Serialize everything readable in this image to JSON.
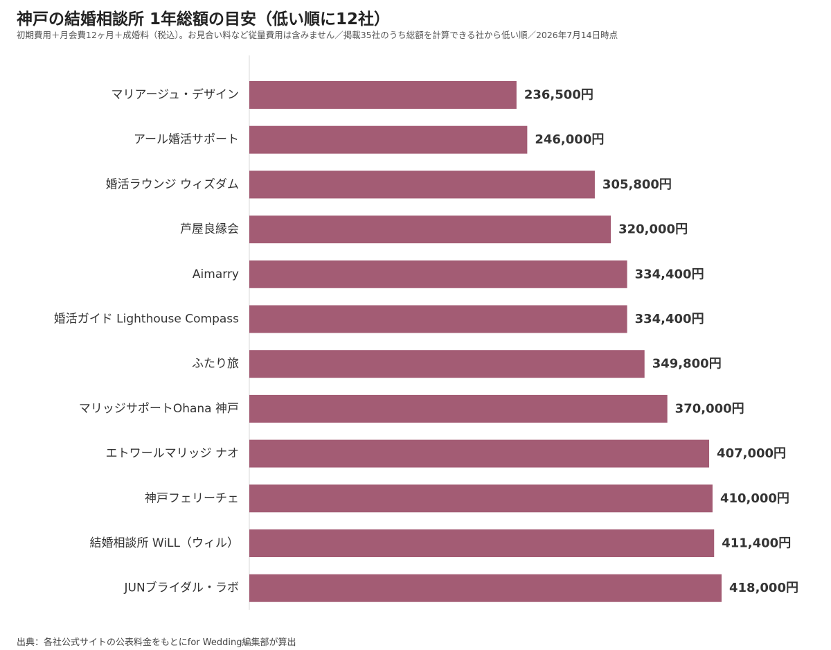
{
  "header": {
    "title": "神戸の結婚相談所 1年総額の目安（低い順に12社）",
    "subtitle": "初期費用＋月会費12ヶ月＋成婚料（税込）。お見合い料など従量費用は含みません／掲載35社のうち総額を計算できる社から低い順／2026年7月14日時点"
  },
  "footer": {
    "source": "出典：各社公式サイトの公表料金をもとにfor Wedding編集部が算出"
  },
  "chart_data": {
    "type": "bar",
    "orientation": "horizontal",
    "title": "神戸の結婚相談所 1年総額の目安（低い順に12社）",
    "subtitle": "初期費用＋月会費12ヶ月＋成婚料（税込）。お見合い料など従量費用は含みません／掲載35社のうち総額を計算できる社から低い順／2026年7月14日時点",
    "categories": [
      "マリアージュ・デザイン",
      "アール婚活サポート",
      "婚活ラウンジ ウィズダム",
      "芦屋良縁会",
      "Aimarry",
      "婚活ガイド Lighthouse Compass",
      "ふたり旅",
      "マリッジサポートOhana 神戸",
      "エトワールマリッジ ナオ",
      "神戸フェリーチェ",
      "結婚相談所 WiLL（ウィル）",
      "JUNブライダル・ラボ"
    ],
    "values": [
      236500,
      246000,
      305800,
      320000,
      334400,
      334400,
      349800,
      370000,
      407000,
      410000,
      411400,
      418000
    ],
    "value_labels": [
      "236,500円",
      "246,000円",
      "305,800円",
      "320,000円",
      "334,400円",
      "334,400円",
      "349,800円",
      "370,000円",
      "407,000円",
      "410,000円",
      "411,400円",
      "418,000円"
    ],
    "xlim": [
      0,
      418000
    ],
    "bar_color": "#a35c74",
    "grid": false,
    "legend": "none"
  }
}
